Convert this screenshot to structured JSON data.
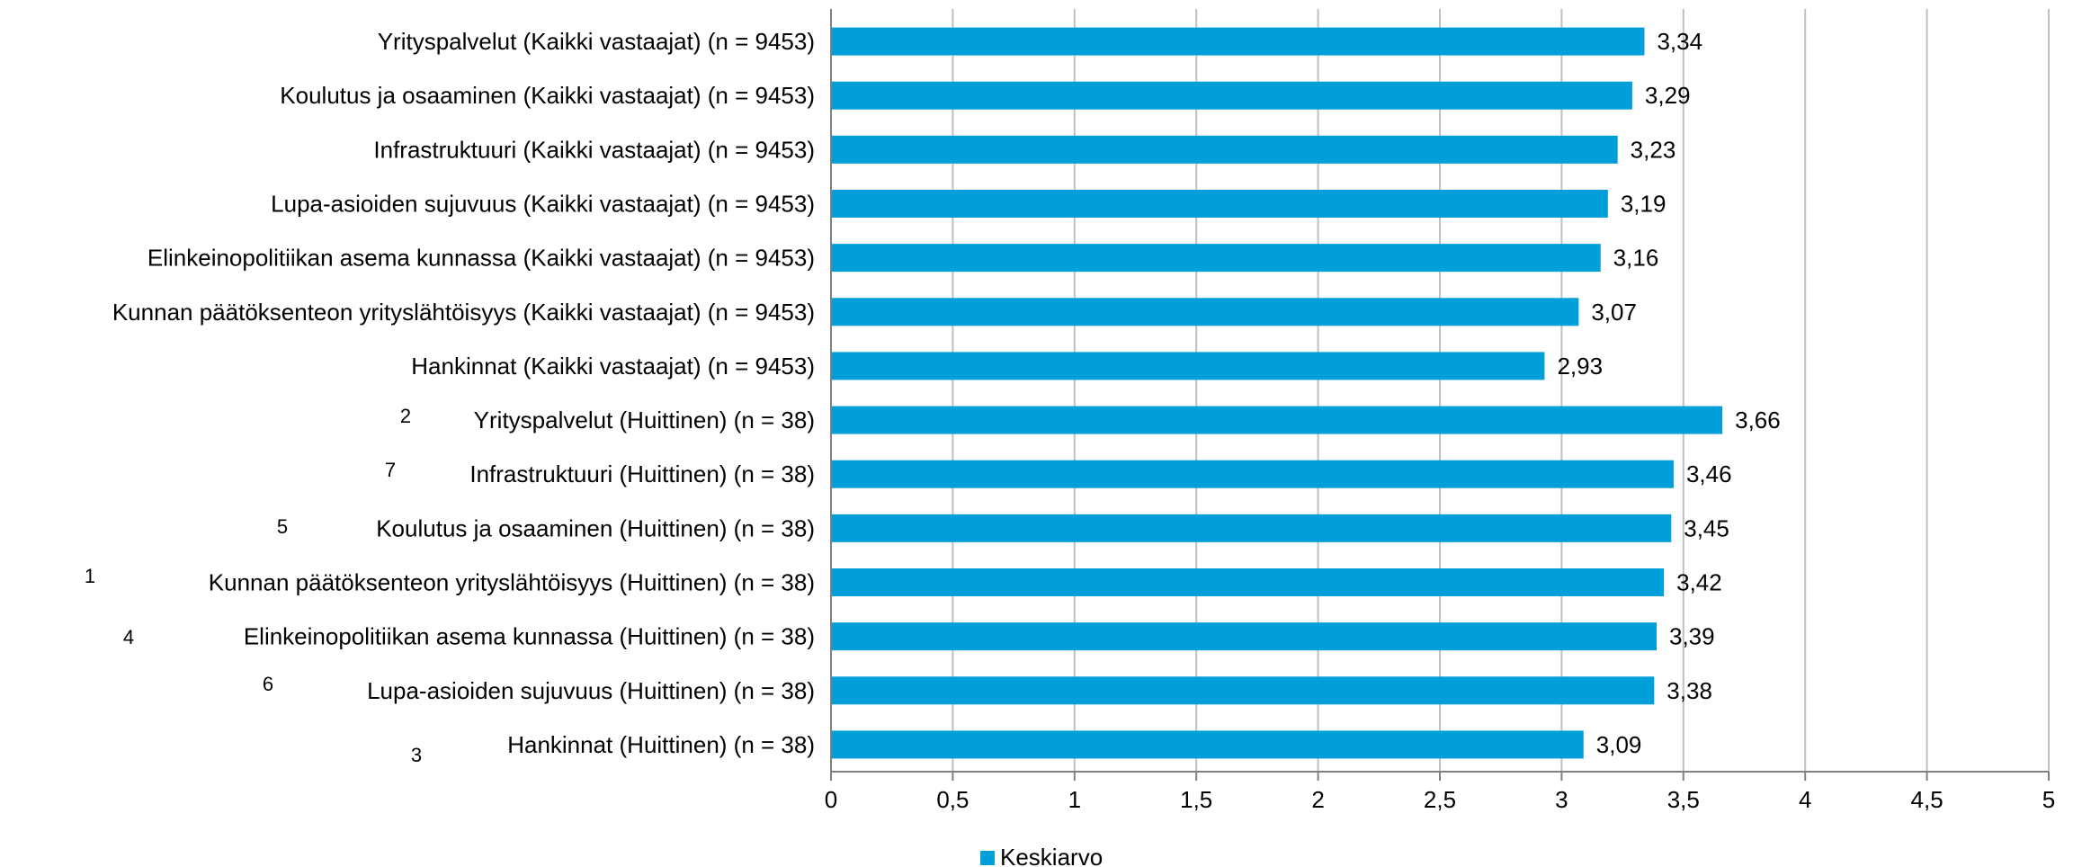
{
  "chart_data": {
    "type": "bar",
    "orientation": "horizontal",
    "categories": [
      "Yrityspalvelut (Kaikki vastaajat) (n = 9453)",
      "Koulutus ja osaaminen (Kaikki vastaajat) (n = 9453)",
      "Infrastruktuuri (Kaikki vastaajat) (n = 9453)",
      "Lupa-asioiden sujuvuus (Kaikki vastaajat) (n = 9453)",
      "Elinkeinopolitiikan asema kunnassa (Kaikki vastaajat) (n = 9453)",
      "Kunnan päätöksenteon yrityslähtöisyys (Kaikki vastaajat) (n = 9453)",
      "Hankinnat (Kaikki vastaajat) (n = 9453)",
      "Yrityspalvelut (Huittinen) (n = 38)",
      "Infrastruktuuri (Huittinen) (n = 38)",
      "Koulutus ja osaaminen (Huittinen) (n = 38)",
      "Kunnan päätöksenteon yrityslähtöisyys (Huittinen) (n = 38)",
      "Elinkeinopolitiikan asema kunnassa (Huittinen) (n = 38)",
      "Lupa-asioiden sujuvuus (Huittinen) (n = 38)",
      "Hankinnat (Huittinen) (n = 38)"
    ],
    "rank_markers": [
      "",
      "",
      "",
      "",
      "",
      "",
      "",
      "2",
      "7",
      "5",
      "1",
      "4",
      "6",
      "3"
    ],
    "series": [
      {
        "name": "Keskiarvo",
        "values": [
          3.34,
          3.29,
          3.23,
          3.19,
          3.16,
          3.07,
          2.93,
          3.66,
          3.46,
          3.45,
          3.42,
          3.39,
          3.38,
          3.09
        ],
        "value_labels": [
          "3,34",
          "3,29",
          "3,23",
          "3,19",
          "3,16",
          "3,07",
          "2,93",
          "3,66",
          "3,46",
          "3,45",
          "3,42",
          "3,39",
          "3,38",
          "3,09"
        ]
      }
    ],
    "xlim": [
      0,
      5
    ],
    "x_ticks": [
      0,
      0.5,
      1,
      1.5,
      2,
      2.5,
      3,
      3.5,
      4,
      4.5,
      5
    ],
    "x_tick_labels": [
      "0",
      "0,5",
      "1",
      "1,5",
      "2",
      "2,5",
      "3",
      "3,5",
      "4",
      "4,5",
      "5"
    ],
    "grid": true,
    "legend_position": "bottom",
    "colors": {
      "bar": "#009fda",
      "grid": "#c0c0c0",
      "axis": "#808080",
      "text": "#000000"
    }
  }
}
